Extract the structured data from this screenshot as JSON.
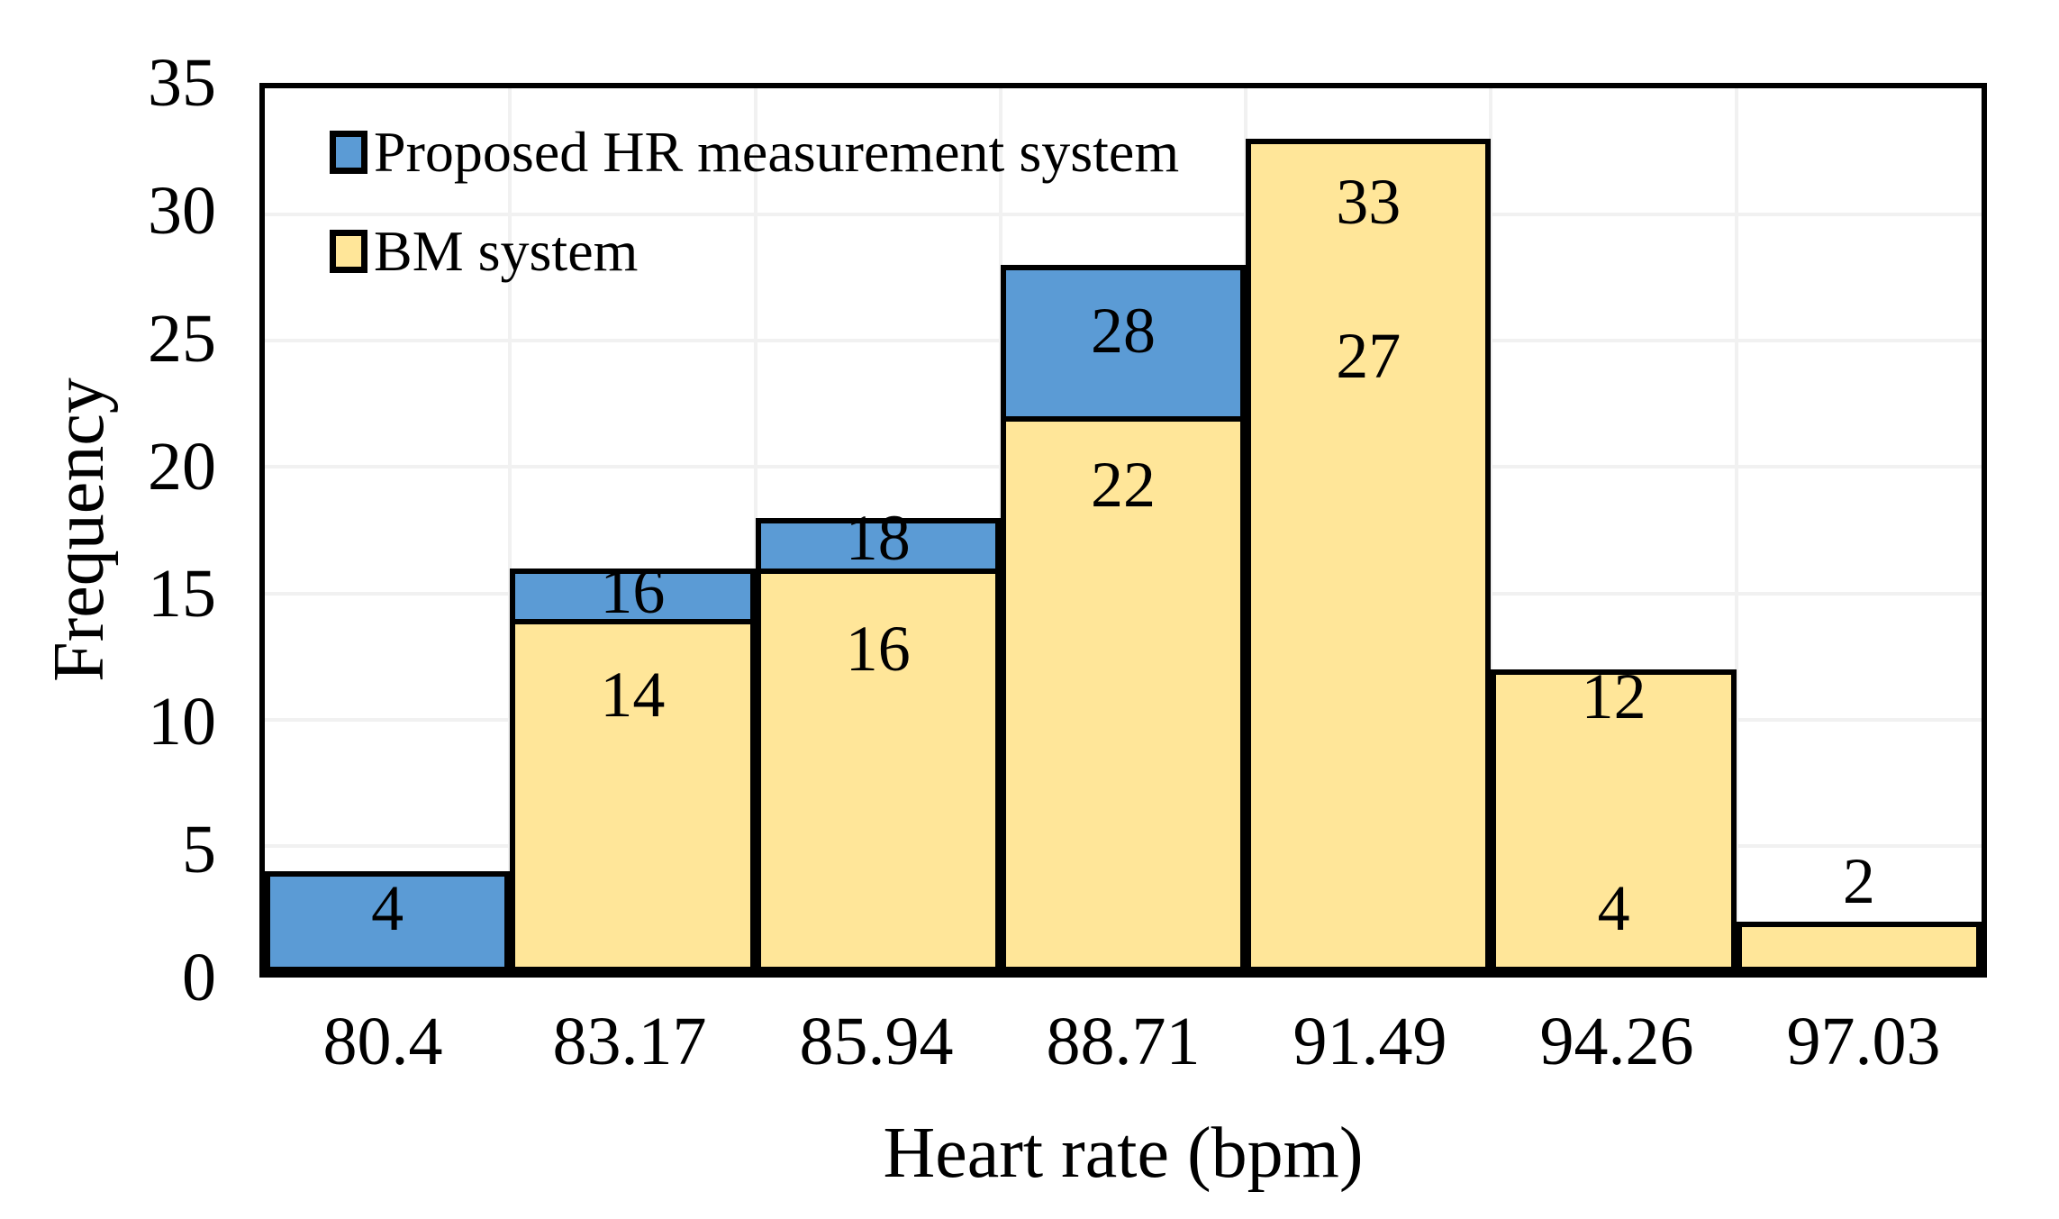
{
  "chart_data": {
    "type": "bar",
    "subtype": "overlapped-histogram",
    "title": "",
    "xlabel": "Heart rate (bpm)",
    "ylabel": "Frequency",
    "categories": [
      "80.4",
      "83.17",
      "85.94",
      "88.71",
      "91.49",
      "94.26",
      "97.03"
    ],
    "series": [
      {
        "name": "Proposed HR measurement system",
        "color": "#5B9BD5",
        "values": [
          4,
          16,
          18,
          28,
          27,
          4,
          0
        ]
      },
      {
        "name": "BM system",
        "color": "#FFE699",
        "values": [
          0,
          14,
          16,
          22,
          33,
          12,
          2
        ]
      }
    ],
    "ylim": [
      0,
      35
    ],
    "ytick_step": 5,
    "yticks": [
      "0",
      "5",
      "10",
      "15",
      "20",
      "25",
      "30",
      "35"
    ],
    "grid": true,
    "gridline_color": "#F1F1F1",
    "bar_border_color": "#000000",
    "gap_width": 0,
    "legend_position": "inside-top-left",
    "data_labels": [
      {
        "cat": 0,
        "series": 0,
        "text": "4",
        "y_center": 2.55
      },
      {
        "cat": 1,
        "series": 0,
        "text": "16",
        "y_center": 15.1
      },
      {
        "cat": 1,
        "series": 1,
        "text": "14",
        "y_center": 11.0
      },
      {
        "cat": 2,
        "series": 0,
        "text": "18",
        "y_center": 17.2
      },
      {
        "cat": 2,
        "series": 1,
        "text": "16",
        "y_center": 12.8
      },
      {
        "cat": 3,
        "series": 0,
        "text": "28",
        "y_center": 25.4
      },
      {
        "cat": 3,
        "series": 1,
        "text": "22",
        "y_center": 19.3
      },
      {
        "cat": 4,
        "series": 1,
        "text": "33",
        "y_center": 30.5
      },
      {
        "cat": 4,
        "series": 0,
        "text": "27",
        "y_center": 24.4
      },
      {
        "cat": 5,
        "series": 1,
        "text": "12",
        "y_center": 10.9
      },
      {
        "cat": 5,
        "series": 0,
        "text": "4",
        "y_center": 2.55
      },
      {
        "cat": 6,
        "series": 1,
        "text": "2",
        "y_center": 3.6
      }
    ]
  },
  "legend": {
    "items": [
      {
        "label": "Proposed HR measurement system",
        "color": "#5B9BD5"
      },
      {
        "label": "BM system",
        "color": "#FFE699"
      }
    ]
  },
  "axes": {
    "x_title": "Heart rate (bpm)",
    "y_title": "Frequency"
  }
}
